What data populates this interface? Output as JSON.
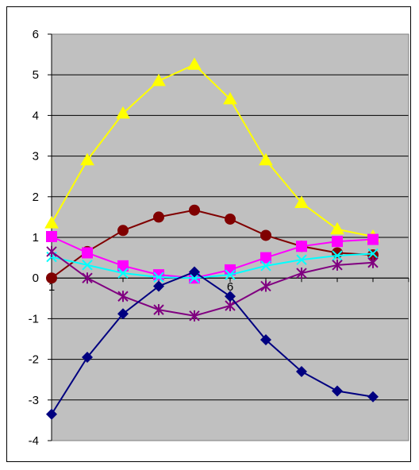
{
  "chart_data": {
    "type": "line",
    "title": "",
    "xlabel": "",
    "ylabel": "",
    "ylim": [
      -4,
      6
    ],
    "yticks": [
      6,
      5,
      4,
      3,
      2,
      1,
      0,
      -1,
      -2,
      -3,
      -4
    ],
    "x": [
      1,
      2,
      3,
      4,
      5,
      6,
      7,
      8,
      9,
      10
    ],
    "x_tick_labels": [
      {
        "position": 1,
        "label": "1"
      },
      {
        "position": 6,
        "label": "6"
      }
    ],
    "grid": true,
    "plot_background": "#C0C0C0",
    "series": [
      {
        "color": "#FFFF00",
        "marker": "triangle",
        "values": [
          1.35,
          2.9,
          4.05,
          4.85,
          5.25,
          4.4,
          2.9,
          1.85,
          1.2,
          1.02
        ]
      },
      {
        "color": "#800000",
        "marker": "circle",
        "values": [
          0.0,
          0.65,
          1.17,
          1.5,
          1.67,
          1.45,
          1.05,
          0.78,
          0.62,
          0.57
        ]
      },
      {
        "color": "#FF00FF",
        "marker": "square",
        "values": [
          1.02,
          0.62,
          0.3,
          0.08,
          0.0,
          0.2,
          0.5,
          0.78,
          0.9,
          0.95
        ]
      },
      {
        "color": "#00FFFF",
        "marker": "x",
        "values": [
          0.52,
          0.32,
          0.12,
          0.02,
          0.0,
          0.08,
          0.3,
          0.45,
          0.55,
          0.6
        ]
      },
      {
        "color": "#800080",
        "marker": "asterisk",
        "values": [
          0.65,
          0.0,
          -0.45,
          -0.78,
          -0.93,
          -0.68,
          -0.2,
          0.12,
          0.32,
          0.38
        ]
      },
      {
        "color": "#000080",
        "marker": "diamond",
        "values": [
          -3.35,
          -1.95,
          -0.88,
          -0.2,
          0.15,
          -0.45,
          -1.52,
          -2.3,
          -2.78,
          -2.92
        ]
      }
    ]
  }
}
